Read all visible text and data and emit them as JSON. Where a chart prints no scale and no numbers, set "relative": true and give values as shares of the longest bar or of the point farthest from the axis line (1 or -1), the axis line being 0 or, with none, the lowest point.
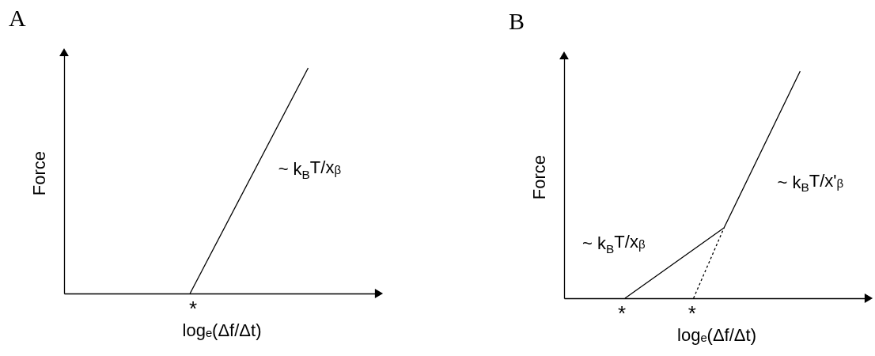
{
  "chart_data": [
    {
      "type": "line",
      "title": "A",
      "xlabel": "logₑ(Δf/Δt)",
      "ylabel": "Force",
      "relative": true,
      "categories": [
        null,
        null,
        null,
        null,
        null,
        null,
        null,
        null,
        null,
        null,
        null,
        null,
        null,
        null,
        null,
        null,
        null,
        null,
        null,
        null,
        null,
        null,
        null,
        null,
        null,
        null,
        null,
        null,
        null,
        null,
        null,
        null,
        null,
        null,
        null,
        null,
        null,
        null,
        null,
        null,
        null
      ],
      "series": [
        {
          "color": "#000000",
          "values": [
            null,
            null,
            null,
            null,
            null,
            null,
            null,
            null,
            null,
            null,
            null,
            null,
            null,
            null,
            null,
            null,
            0,
            null,
            null,
            null,
            null,
            null,
            null,
            null,
            null,
            null,
            null,
            null,
            null,
            null,
            null,
            1,
            null,
            null,
            null,
            null,
            null,
            null,
            null,
            null,
            null
          ]
        }
      ],
      "annotations": [
        "*",
        "~ k$_{B}$T/xᵦ"
      ]
    },
    {
      "type": "line",
      "title": "B",
      "xlabel": "logₑ(Δf/Δt)",
      "ylabel": "Force",
      "relative": true,
      "categories": [
        null,
        null,
        null,
        null,
        null,
        null,
        null,
        null,
        null,
        null,
        null,
        null,
        null,
        null,
        null,
        null,
        null,
        null,
        null,
        null,
        null,
        null,
        null,
        null,
        null,
        null,
        null,
        null,
        null,
        null,
        null,
        null,
        null,
        null,
        null,
        null,
        null,
        null,
        null,
        null,
        null
      ],
      "series": [
        {
          "color": "#000000",
          "values": [
            null,
            null,
            null,
            null,
            null,
            null,
            null,
            null,
            0,
            null,
            null,
            null,
            null,
            null,
            null,
            null,
            null,
            null,
            null,
            null,
            null,
            0.31,
            null,
            null,
            null,
            null,
            null,
            null,
            null,
            null,
            null,
            1,
            null,
            null,
            null,
            null,
            null,
            null,
            null,
            null,
            null
          ]
        },
        {
          "color": "#000000",
          "line_style": "dotted",
          "values": [
            null,
            null,
            null,
            null,
            null,
            null,
            null,
            null,
            null,
            null,
            null,
            null,
            null,
            null,
            null,
            null,
            null,
            0,
            null,
            null,
            null,
            0.31,
            null,
            null,
            null,
            null,
            null,
            null,
            null,
            null,
            null,
            null,
            null,
            null,
            null,
            null,
            null,
            null,
            null,
            null,
            null
          ]
        }
      ],
      "annotations": [
        "*",
        "*",
        "~ k$_{B}$T/xᵦ",
        "~ k$_{B}$T/x'ᵦ"
      ]
    }
  ]
}
